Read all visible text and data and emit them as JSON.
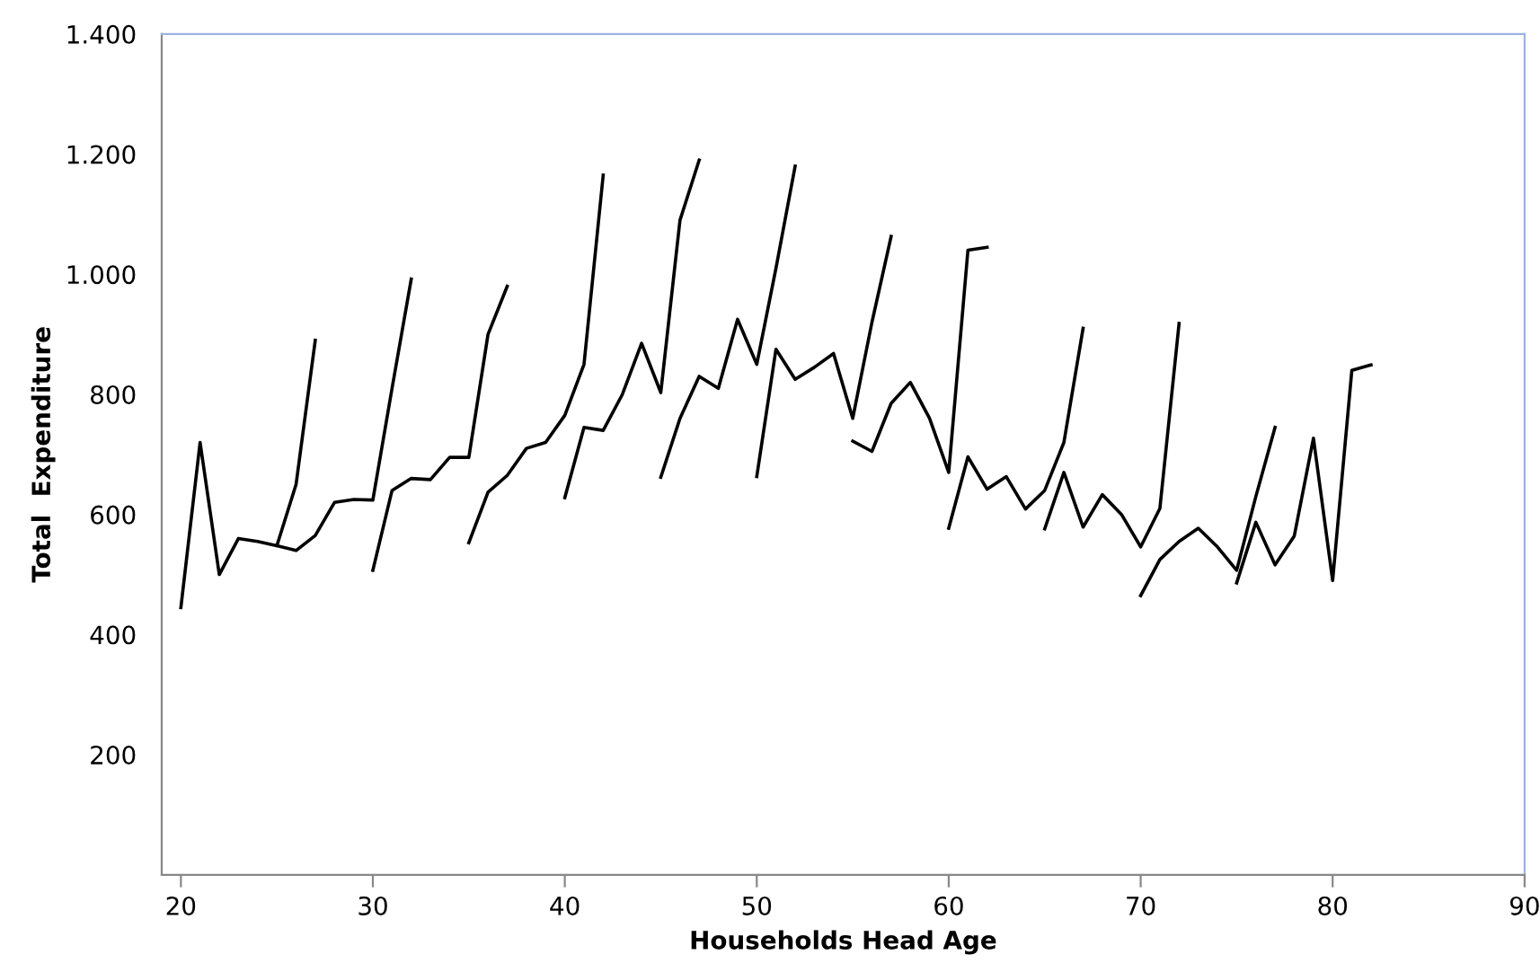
{
  "chart_data": {
    "type": "line",
    "xlabel": "Households Head Age",
    "ylabel": "Total  Expenditure",
    "xlim": [
      19,
      90
    ],
    "xticks": [
      20,
      30,
      40,
      50,
      60,
      70,
      80,
      90
    ],
    "ylim": [
      0,
      1400
    ],
    "yticks": [
      {
        "value": 200,
        "label": "200"
      },
      {
        "value": 400,
        "label": "400"
      },
      {
        "value": 600,
        "label": "600"
      },
      {
        "value": 800,
        "label": "800"
      },
      {
        "value": 1000,
        "label": "1.000"
      },
      {
        "value": 1200,
        "label": "1.200"
      },
      {
        "value": 1400,
        "label": "1.400"
      }
    ],
    "grid": false,
    "legend": false,
    "marker": "none",
    "line_style": "solid",
    "series": [
      {
        "color": "#000000",
        "x": [
          20,
          21,
          22,
          23,
          24,
          25,
          26,
          27
        ],
        "values": [
          445,
          720,
          500,
          560,
          555,
          548,
          650,
          890
        ]
      },
      {
        "color": "#000000",
        "x": [
          25,
          26,
          27,
          28,
          29,
          30,
          31,
          32
        ],
        "values": [
          548,
          540,
          565,
          620,
          625,
          624,
          810,
          992
        ]
      },
      {
        "color": "#000000",
        "x": [
          30,
          31,
          32,
          33,
          34,
          35,
          36,
          37
        ],
        "values": [
          507,
          640,
          660,
          658,
          695,
          695,
          900,
          980
        ]
      },
      {
        "color": "#000000",
        "x": [
          35,
          36,
          37,
          38,
          39,
          40,
          41,
          42
        ],
        "values": [
          553,
          637,
          665,
          710,
          720,
          765,
          850,
          1165
        ]
      },
      {
        "color": "#000000",
        "x": [
          40,
          41,
          42,
          43,
          44,
          45,
          46,
          47
        ],
        "values": [
          628,
          745,
          740,
          800,
          885,
          803,
          1090,
          1190
        ]
      },
      {
        "color": "#000000",
        "x": [
          45,
          46,
          47,
          48,
          49,
          50,
          51,
          52
        ],
        "values": [
          662,
          760,
          830,
          810,
          925,
          850,
          1010,
          1180
        ]
      },
      {
        "color": "#000000",
        "x": [
          50,
          51,
          52,
          53,
          54,
          55,
          56,
          57
        ],
        "values": [
          663,
          875,
          825,
          845,
          868,
          760,
          920,
          1063
        ]
      },
      {
        "color": "#000000",
        "x": [
          55,
          56,
          57,
          58,
          59,
          60,
          61,
          62
        ],
        "values": [
          722,
          705,
          785,
          820,
          760,
          670,
          1040,
          1045
        ]
      },
      {
        "color": "#000000",
        "x": [
          60,
          61,
          62,
          63,
          64,
          65,
          66,
          67
        ],
        "values": [
          577,
          696,
          642,
          663,
          609,
          640,
          720,
          910
        ]
      },
      {
        "color": "#000000",
        "x": [
          65,
          66,
          67,
          68,
          69,
          70,
          71,
          72
        ],
        "values": [
          576,
          670,
          579,
          633,
          600,
          546,
          610,
          918
        ]
      },
      {
        "color": "#000000",
        "x": [
          70,
          71,
          72,
          73,
          74,
          75,
          76,
          77
        ],
        "values": [
          465,
          525,
          555,
          577,
          546,
          507,
          630,
          745
        ]
      },
      {
        "color": "#000000",
        "x": [
          75,
          76,
          77,
          78,
          79,
          80,
          81,
          82
        ],
        "values": [
          486,
          587,
          516,
          564,
          727,
          490,
          840,
          849
        ]
      }
    ]
  }
}
